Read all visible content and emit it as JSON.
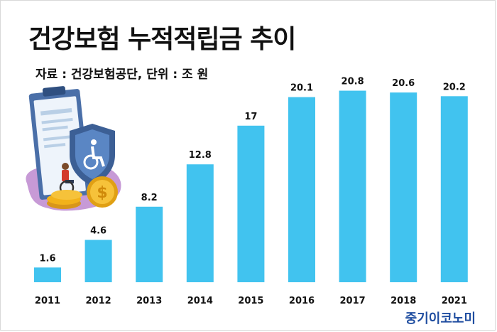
{
  "chart_data": {
    "type": "bar",
    "title": "건강보험 누적적립금 추이",
    "subtitle": "자료 : 건강보험공단, 단위 : 조 원",
    "categories": [
      "2011",
      "2012",
      "2013",
      "2014",
      "2015",
      "2016",
      "2017",
      "2018",
      "2021"
    ],
    "values": [
      1.6,
      4.6,
      8.2,
      12.8,
      17,
      20.1,
      20.8,
      20.6,
      20.2
    ],
    "data_labels": [
      "1.6",
      "4.6",
      "8.2",
      "12.8",
      "17",
      "20.1",
      "20.8",
      "20.6",
      "20.2"
    ],
    "ylim": [
      0,
      22
    ],
    "grid": false,
    "legend": "none",
    "bar_color": "#41c3ef"
  },
  "brand": "중기이코노미",
  "illustration": {
    "icon": "health-insurance-illustration",
    "shield_icon": "wheelchair-shield-icon",
    "coin_symbol": "$"
  },
  "colors": {
    "title": "#111111",
    "brand": "#1f4da0",
    "shield": "#3c5f95",
    "clipboard": "#4a6fa8",
    "coin": "#f2b21a",
    "blob": "#c79ad6"
  }
}
